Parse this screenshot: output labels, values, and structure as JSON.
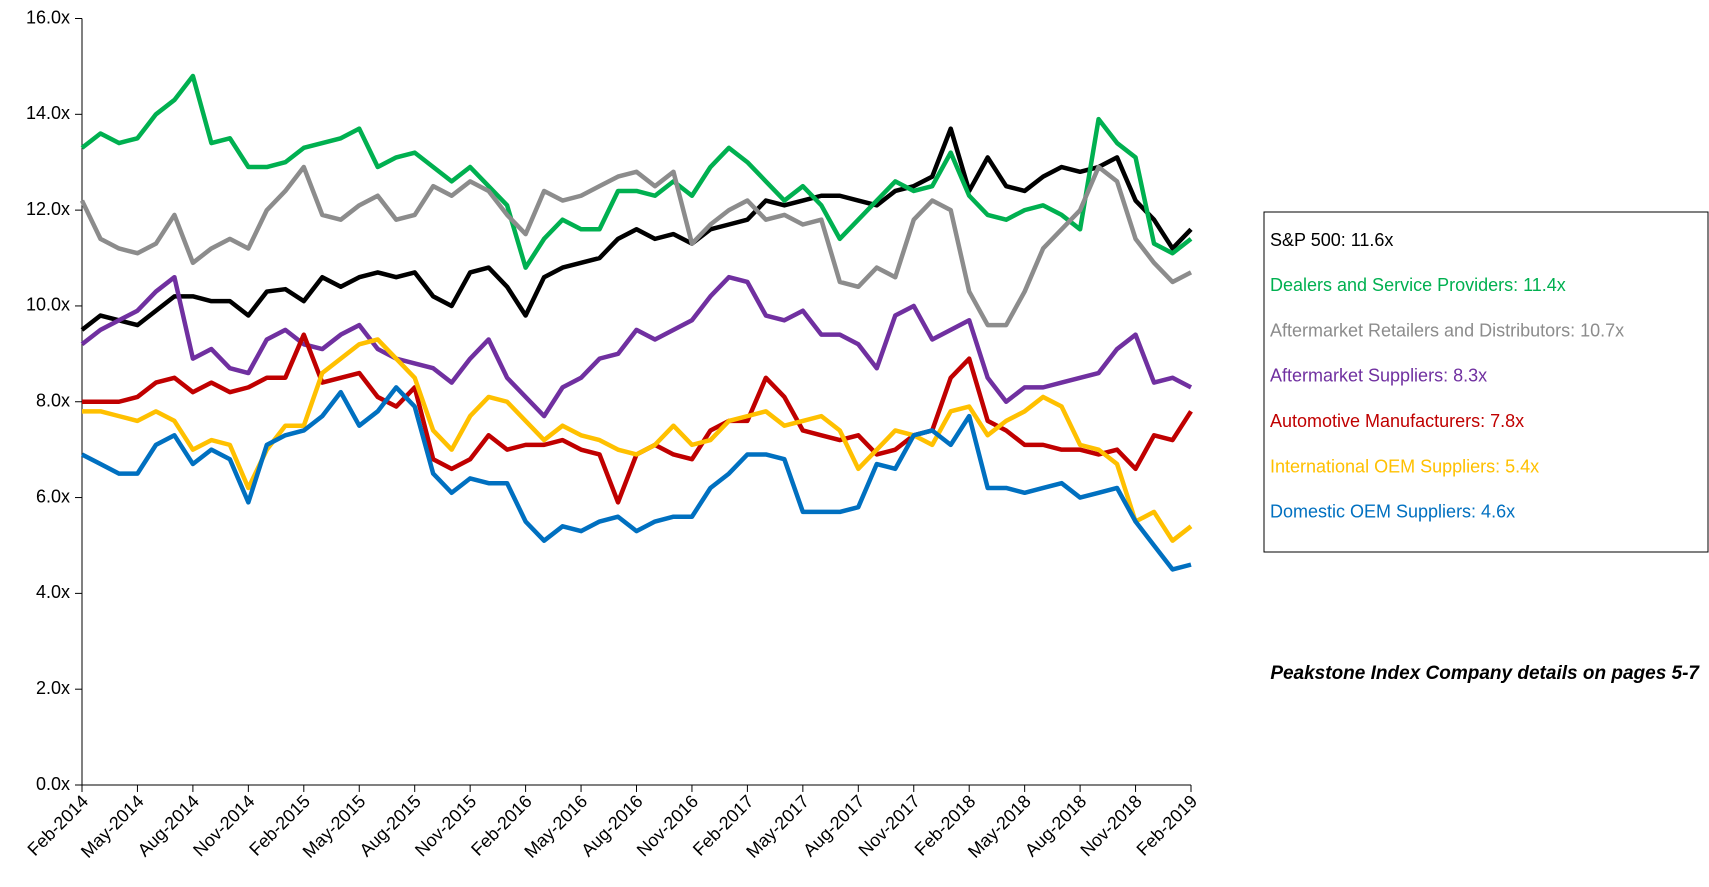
{
  "chart_data": {
    "type": "line",
    "categories": [
      "Feb-2014",
      null,
      null,
      "May-2014",
      null,
      null,
      "Aug-2014",
      null,
      null,
      "Nov-2014",
      null,
      null,
      "Feb-2015",
      null,
      null,
      "May-2015",
      null,
      null,
      "Aug-2015",
      null,
      null,
      "Nov-2015",
      null,
      null,
      "Feb-2016",
      null,
      null,
      "May-2016",
      null,
      null,
      "Aug-2016",
      null,
      null,
      "Nov-2016",
      null,
      null,
      "Feb-2017",
      null,
      null,
      "May-2017",
      null,
      null,
      "Aug-2017",
      null,
      null,
      "Nov-2017",
      null,
      null,
      "Feb-2018",
      null,
      null,
      "May-2018",
      null,
      null,
      "Aug-2018",
      null,
      null,
      "Nov-2018",
      null,
      null,
      "Feb-2019"
    ],
    "ylim": [
      0,
      16
    ],
    "yticks": [
      {
        "value": 0,
        "label": "0.0x"
      },
      {
        "value": 2,
        "label": "2.0x"
      },
      {
        "value": 4,
        "label": "4.0x"
      },
      {
        "value": 6,
        "label": "6.0x"
      },
      {
        "value": 8,
        "label": "8.0x"
      },
      {
        "value": 10,
        "label": "10.0x"
      },
      {
        "value": 12,
        "label": "12.0x"
      },
      {
        "value": 14,
        "label": "14.0x"
      },
      {
        "value": 16,
        "label": "16.0x"
      }
    ],
    "series": [
      {
        "name": "S&P 500: 11.6x",
        "color": "#000000",
        "values": [
          9.5,
          9.8,
          9.7,
          9.6,
          9.9,
          10.2,
          10.2,
          10.1,
          10.1,
          9.8,
          10.3,
          10.35,
          10.1,
          10.6,
          10.4,
          10.6,
          10.7,
          10.6,
          10.7,
          10.2,
          10.0,
          10.7,
          10.8,
          10.4,
          9.8,
          10.6,
          10.8,
          10.9,
          11.0,
          11.4,
          11.6,
          11.4,
          11.5,
          11.3,
          11.6,
          11.7,
          11.8,
          12.2,
          12.1,
          12.2,
          12.3,
          12.3,
          12.2,
          12.1,
          12.4,
          12.5,
          12.7,
          13.7,
          12.4,
          13.1,
          12.5,
          12.4,
          12.7,
          12.9,
          12.8,
          12.9,
          13.1,
          12.2,
          11.8,
          11.2,
          11.6
        ]
      },
      {
        "name": "Dealers and Service Providers: 11.4x",
        "color": "#00b050",
        "values": [
          13.3,
          13.6,
          13.4,
          13.5,
          14.0,
          14.3,
          14.8,
          13.4,
          13.5,
          12.9,
          12.9,
          13.0,
          13.3,
          13.4,
          13.5,
          13.7,
          12.9,
          13.1,
          13.2,
          12.9,
          12.6,
          12.9,
          12.5,
          12.1,
          10.8,
          11.4,
          11.8,
          11.6,
          11.6,
          12.4,
          12.4,
          12.3,
          12.6,
          12.3,
          12.9,
          13.3,
          13.0,
          12.6,
          12.2,
          12.5,
          12.1,
          11.4,
          11.8,
          12.2,
          12.6,
          12.4,
          12.5,
          13.2,
          12.3,
          11.9,
          11.8,
          12.0,
          12.1,
          11.9,
          11.6,
          13.9,
          13.4,
          13.1,
          11.3,
          11.1,
          11.4
        ]
      },
      {
        "name": "Aftermarket Retailers and Distributors: 10.7x",
        "color": "#8c8c8c",
        "values": [
          12.2,
          11.4,
          11.2,
          11.1,
          11.3,
          11.9,
          10.9,
          11.2,
          11.4,
          11.2,
          12.0,
          12.4,
          12.9,
          11.9,
          11.8,
          12.1,
          12.3,
          11.8,
          11.9,
          12.5,
          12.3,
          12.6,
          12.4,
          11.9,
          11.5,
          12.4,
          12.2,
          12.3,
          12.5,
          12.7,
          12.8,
          12.5,
          12.8,
          11.3,
          11.7,
          12.0,
          12.2,
          11.8,
          11.9,
          11.7,
          11.8,
          10.5,
          10.4,
          10.8,
          10.6,
          11.8,
          12.2,
          12.0,
          10.3,
          9.6,
          9.6,
          10.3,
          11.2,
          11.6,
          12.0,
          12.9,
          12.6,
          11.4,
          10.9,
          10.5,
          10.7
        ]
      },
      {
        "name": "Aftermarket Suppliers: 8.3x",
        "color": "#7030a0",
        "values": [
          9.2,
          9.5,
          9.7,
          9.9,
          10.3,
          10.6,
          8.9,
          9.1,
          8.7,
          8.6,
          9.3,
          9.5,
          9.2,
          9.1,
          9.4,
          9.6,
          9.1,
          8.9,
          8.8,
          8.7,
          8.4,
          8.9,
          9.3,
          8.5,
          8.1,
          7.7,
          8.3,
          8.5,
          8.9,
          9.0,
          9.5,
          9.3,
          9.5,
          9.7,
          10.2,
          10.6,
          10.5,
          9.8,
          9.7,
          9.9,
          9.4,
          9.4,
          9.2,
          8.7,
          9.8,
          10.0,
          9.3,
          9.5,
          9.7,
          8.5,
          8.0,
          8.3,
          8.3,
          8.4,
          8.5,
          8.6,
          9.1,
          9.4,
          8.4,
          8.5,
          8.3
        ]
      },
      {
        "name": "Automotive Manufacturers: 7.8x",
        "color": "#c00000",
        "values": [
          8.0,
          8.0,
          8.0,
          8.1,
          8.4,
          8.5,
          8.2,
          8.4,
          8.2,
          8.3,
          8.5,
          8.5,
          9.4,
          8.4,
          8.5,
          8.6,
          8.1,
          7.9,
          8.3,
          6.8,
          6.6,
          6.8,
          7.3,
          7.0,
          7.1,
          7.1,
          7.2,
          7.0,
          6.9,
          5.9,
          6.9,
          7.1,
          6.9,
          6.8,
          7.4,
          7.6,
          7.6,
          8.5,
          8.1,
          7.4,
          7.3,
          7.2,
          7.3,
          6.9,
          7.0,
          7.3,
          7.4,
          8.5,
          8.9,
          7.6,
          7.4,
          7.1,
          7.1,
          7.0,
          7.0,
          6.9,
          7.0,
          6.6,
          7.3,
          7.2,
          7.8
        ]
      },
      {
        "name": "International OEM Suppliers: 5.4x",
        "color": "#ffc000",
        "values": [
          7.8,
          7.8,
          7.7,
          7.6,
          7.8,
          7.6,
          7.0,
          7.2,
          7.1,
          6.2,
          7.0,
          7.5,
          7.5,
          8.6,
          8.9,
          9.2,
          9.3,
          8.9,
          8.5,
          7.4,
          7.0,
          7.7,
          8.1,
          8.0,
          7.6,
          7.2,
          7.5,
          7.3,
          7.2,
          7.0,
          6.9,
          7.1,
          7.5,
          7.1,
          7.2,
          7.6,
          7.7,
          7.8,
          7.5,
          7.6,
          7.7,
          7.4,
          6.6,
          7.0,
          7.4,
          7.3,
          7.1,
          7.8,
          7.9,
          7.3,
          7.6,
          7.8,
          8.1,
          7.9,
          7.1,
          7.0,
          6.7,
          5.5,
          5.7,
          5.1,
          5.4
        ]
      },
      {
        "name": "Domestic OEM Suppliers: 4.6x",
        "color": "#0070c0",
        "values": [
          6.9,
          6.7,
          6.5,
          6.5,
          7.1,
          7.3,
          6.7,
          7.0,
          6.8,
          5.9,
          7.1,
          7.3,
          7.4,
          7.7,
          8.2,
          7.5,
          7.8,
          8.3,
          7.9,
          6.5,
          6.1,
          6.4,
          6.3,
          6.3,
          5.5,
          5.1,
          5.4,
          5.3,
          5.5,
          5.6,
          5.3,
          5.5,
          5.6,
          5.6,
          6.2,
          6.5,
          6.9,
          6.9,
          6.8,
          5.7,
          5.7,
          5.7,
          5.8,
          6.7,
          6.6,
          7.3,
          7.4,
          7.1,
          7.7,
          6.2,
          6.2,
          6.1,
          6.2,
          6.3,
          6.0,
          6.1,
          6.2,
          5.5,
          5.0,
          4.5,
          4.6
        ]
      }
    ],
    "annotation": "Peakstone Index Company details on pages 5-7"
  }
}
